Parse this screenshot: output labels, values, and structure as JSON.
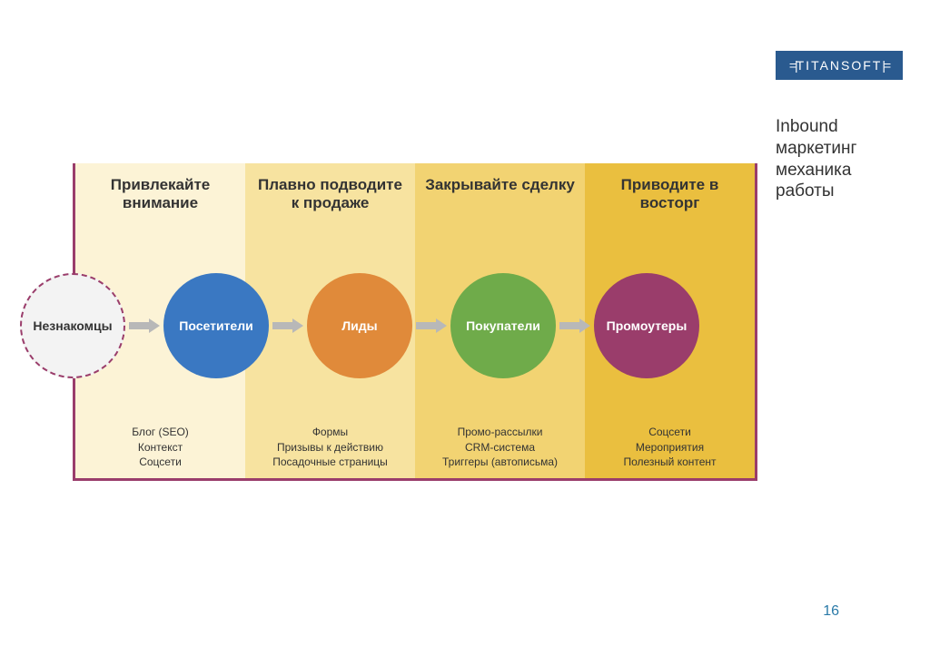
{
  "logo": {
    "text": "TITANSOFT",
    "bg_color": "#2a5a8f",
    "text_color": "#ffffff"
  },
  "side_title": "Inbound маркетинг механика работы",
  "page_number": "16",
  "page_number_color": "#2a7aa8",
  "diagram": {
    "border_color": "#9a3d6b",
    "arrow_color": "#b8b8b8",
    "columns": [
      {
        "header": "Привлекайте внимание",
        "bg": "#fcf3d6",
        "footer": "Блог (SEO)\nКонтекст\nСоцсети"
      },
      {
        "header": "Плавно подводите к продаже",
        "bg": "#f7e3a0",
        "footer": "Формы\nПризывы к действию\nПосадочные страницы"
      },
      {
        "header": "Закрывайте сделку",
        "bg": "#f2d372",
        "footer": "Промо-рассылки\nCRM-система\nТриггеры (автописьма)"
      },
      {
        "header": "Приводите в восторг",
        "bg": "#eabf3f",
        "footer": "Соцсети\nМероприятия\nПолезный контент"
      }
    ],
    "nodes": [
      {
        "label": "Незнакомцы",
        "type": "dashed",
        "fill": "#f3f3f3",
        "border": "#9a3d6b",
        "text_color": "#333333"
      },
      {
        "label": "Посетители",
        "type": "solid",
        "fill": "#3a78c2",
        "text_color": "#ffffff"
      },
      {
        "label": "Лиды",
        "type": "solid",
        "fill": "#e08a3a",
        "text_color": "#ffffff"
      },
      {
        "label": "Покупатели",
        "type": "solid",
        "fill": "#6fab4a",
        "text_color": "#ffffff"
      },
      {
        "label": "Промоутеры",
        "type": "solid",
        "fill": "#9a3d6b",
        "text_color": "#ffffff"
      }
    ]
  }
}
